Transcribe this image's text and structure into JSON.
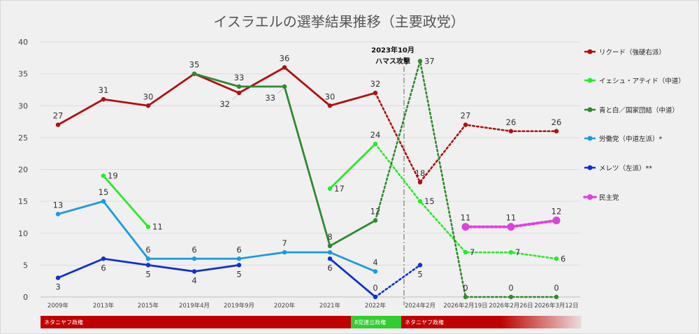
{
  "chart_data": {
    "type": "line",
    "title": "イスラエルの選挙結果推移（主要政党）",
    "xlabel": "",
    "ylabel": "",
    "ylim": [
      0,
      40
    ],
    "yticks": [
      0,
      5,
      10,
      15,
      20,
      25,
      30,
      35,
      40
    ],
    "grid": "horizontal",
    "legend_position": "right",
    "categories": [
      "2009年",
      "2013年",
      "2015年",
      "2019年4月",
      "2019年9月",
      "2020年",
      "2021年",
      "2022年",
      "2024年2月",
      "2026年2月19日",
      "2026年2月26日",
      "2026年3月12日"
    ],
    "series": [
      {
        "name": "リクード（強硬右派）",
        "color": "#b01010",
        "solid": [
          [
            0,
            27
          ],
          [
            1,
            31
          ],
          [
            2,
            30
          ],
          [
            3,
            35
          ],
          [
            4,
            32
          ],
          [
            5,
            36
          ],
          [
            6,
            30
          ],
          [
            7,
            32
          ]
        ],
        "dotted": [
          [
            7,
            32
          ],
          [
            8,
            18
          ],
          [
            9,
            27
          ],
          [
            10,
            26
          ],
          [
            11,
            26
          ]
        ],
        "labels": [
          {
            "i": 0,
            "v": 27,
            "text": "27",
            "pos": "above"
          },
          {
            "i": 1,
            "v": 31,
            "text": "31",
            "pos": "above"
          },
          {
            "i": 2,
            "v": 30,
            "text": "30",
            "pos": "above"
          },
          {
            "i": 3,
            "v": 35,
            "text": "35",
            "pos": "above"
          },
          {
            "i": 4,
            "v": 32,
            "text": "32",
            "pos": "belowleft"
          },
          {
            "i": 5,
            "v": 36,
            "text": "36",
            "pos": "above"
          },
          {
            "i": 6,
            "v": 30,
            "text": "30",
            "pos": "above"
          },
          {
            "i": 7,
            "v": 32,
            "text": "32",
            "pos": "above"
          },
          {
            "i": 8,
            "v": 18,
            "text": "18",
            "pos": "above"
          },
          {
            "i": 9,
            "v": 27,
            "text": "27",
            "pos": "above"
          },
          {
            "i": 10,
            "v": 26,
            "text": "26",
            "pos": "above"
          },
          {
            "i": 11,
            "v": 26,
            "text": "26",
            "pos": "above"
          }
        ]
      },
      {
        "name": "イェシュ・アティド（中道）",
        "color": "#22ee22",
        "solid_segments": [
          [
            [
              1,
              19
            ],
            [
              2,
              11
            ]
          ],
          [
            [
              6,
              17
            ],
            [
              7,
              24
            ]
          ]
        ],
        "dotted": [
          [
            7,
            24
          ],
          [
            8,
            15
          ],
          [
            9,
            7
          ],
          [
            10,
            7
          ],
          [
            11,
            6
          ]
        ],
        "labels": [
          {
            "i": 1,
            "v": 19,
            "text": "19",
            "pos": "right"
          },
          {
            "i": 2,
            "v": 11,
            "text": "11",
            "pos": "right"
          },
          {
            "i": 6,
            "v": 17,
            "text": "17",
            "pos": "right"
          },
          {
            "i": 7,
            "v": 24,
            "text": "24",
            "pos": "above"
          },
          {
            "i": 8,
            "v": 15,
            "text": "15",
            "pos": "right"
          },
          {
            "i": 9,
            "v": 7,
            "text": "7",
            "pos": "right"
          },
          {
            "i": 10,
            "v": 7,
            "text": "7",
            "pos": "right"
          },
          {
            "i": 11,
            "v": 6,
            "text": "6",
            "pos": "right"
          }
        ]
      },
      {
        "name": "青と白／国家団結（中道）",
        "color": "#2e8b2e",
        "solid": [
          [
            3,
            35
          ],
          [
            4,
            33
          ],
          [
            5,
            33
          ],
          [
            6,
            8
          ],
          [
            7,
            12
          ]
        ],
        "dotted": [
          [
            7,
            12
          ],
          [
            8,
            37
          ],
          [
            9,
            0
          ],
          [
            10,
            0
          ],
          [
            11,
            0
          ]
        ],
        "labels": [
          {
            "i": 4,
            "v": 33,
            "text": "33",
            "pos": "above"
          },
          {
            "i": 5,
            "v": 33,
            "text": "33",
            "pos": "belowleft"
          },
          {
            "i": 6,
            "v": 8,
            "text": "8",
            "pos": "above"
          },
          {
            "i": 7,
            "v": 12,
            "text": "12",
            "pos": "above"
          },
          {
            "i": 8,
            "v": 37,
            "text": "37",
            "pos": "right"
          },
          {
            "i": 9,
            "v": 0,
            "text": "0",
            "pos": "above"
          },
          {
            "i": 10,
            "v": 0,
            "text": "0",
            "pos": "above"
          },
          {
            "i": 11,
            "v": 0,
            "text": "0",
            "pos": "above"
          }
        ]
      },
      {
        "name": "労働党（中道左派）*",
        "color": "#1a9be0",
        "solid": [
          [
            0,
            13
          ],
          [
            1,
            15
          ],
          [
            2,
            6
          ],
          [
            3,
            6
          ],
          [
            4,
            6
          ],
          [
            5,
            7
          ],
          [
            6,
            7
          ],
          [
            7,
            4
          ]
        ],
        "dotted": [],
        "labels": [
          {
            "i": 0,
            "v": 13,
            "text": "13",
            "pos": "above"
          },
          {
            "i": 1,
            "v": 15,
            "text": "15",
            "pos": "above"
          },
          {
            "i": 2,
            "v": 6,
            "text": "6",
            "pos": "above"
          },
          {
            "i": 3,
            "v": 6,
            "text": "6",
            "pos": "above"
          },
          {
            "i": 4,
            "v": 6,
            "text": "6",
            "pos": "above"
          },
          {
            "i": 5,
            "v": 7,
            "text": "7",
            "pos": "above"
          },
          {
            "i": 7,
            "v": 4,
            "text": "4",
            "pos": "above"
          }
        ]
      },
      {
        "name": "メレツ（左派）**",
        "color": "#1030d0",
        "solid": [
          [
            0,
            3
          ],
          [
            1,
            6
          ],
          [
            2,
            5
          ],
          [
            3,
            4
          ],
          [
            4,
            5
          ]
        ],
        "solid2": [
          [
            6,
            6
          ],
          [
            7,
            0
          ]
        ],
        "dotted": [
          [
            7,
            0
          ],
          [
            8,
            5
          ]
        ],
        "labels": [
          {
            "i": 0,
            "v": 3,
            "text": "3",
            "pos": "below"
          },
          {
            "i": 1,
            "v": 6,
            "text": "6",
            "pos": "below"
          },
          {
            "i": 2,
            "v": 5,
            "text": "5",
            "pos": "below"
          },
          {
            "i": 3,
            "v": 4,
            "text": "4",
            "pos": "below"
          },
          {
            "i": 4,
            "v": 5,
            "text": "5",
            "pos": "below"
          },
          {
            "i": 6,
            "v": 6,
            "text": "6",
            "pos": "below"
          },
          {
            "i": 7,
            "v": 0,
            "text": "0",
            "pos": "above"
          },
          {
            "i": 8,
            "v": 5,
            "text": "5",
            "pos": "below"
          }
        ]
      },
      {
        "name": "民主党",
        "color": "#e040e0",
        "solid": [],
        "dotted": [
          [
            9,
            11
          ],
          [
            10,
            11
          ],
          [
            11,
            12
          ]
        ],
        "labels": [
          {
            "i": 9,
            "v": 11,
            "text": "11",
            "pos": "above"
          },
          {
            "i": 10,
            "v": 11,
            "text": "11",
            "pos": "above"
          },
          {
            "i": 11,
            "v": 12,
            "text": "12",
            "pos": "above"
          }
        ]
      }
    ],
    "annotations": [
      {
        "text_line1": "2023年10月",
        "text_line2": "ハマス攻撃",
        "at_between": [
          7,
          8
        ]
      }
    ],
    "periods": [
      {
        "label": "ネタニヤフ政権",
        "from": "2009年",
        "to": "2021年",
        "color": "#c00000"
      },
      {
        "label": "8党連立政権",
        "from": "2021年",
        "to": "2022年",
        "color": "#33cc33"
      },
      {
        "label": "ネタニヤフ政権",
        "from": "2022年",
        "to": "2026年3月12日",
        "color": "#c00000"
      }
    ]
  }
}
